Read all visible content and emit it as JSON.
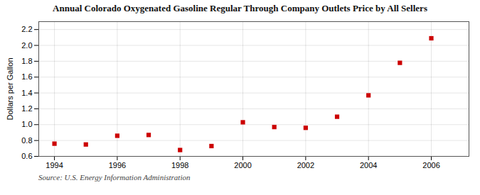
{
  "chart_data": {
    "type": "scatter",
    "title": "Annual Colorado Oxygenated Gasoline Regular Through Company Outlets Price by All Sellers",
    "ylabel": "Dollars per Gallon",
    "source": "Source: U.S. Energy Information Administration",
    "x": [
      1994,
      1995,
      1996,
      1997,
      1998,
      1999,
      2000,
      2001,
      2002,
      2003,
      2004,
      2005,
      2006
    ],
    "values": [
      0.76,
      0.75,
      0.86,
      0.87,
      0.68,
      0.73,
      1.03,
      0.97,
      0.96,
      1.1,
      1.37,
      1.78,
      2.09
    ],
    "color": "#cc0000",
    "marker": "square",
    "xlim": [
      1993.5,
      2007.2
    ],
    "xticks": [
      1994,
      1996,
      1998,
      2000,
      2002,
      2004,
      2006
    ],
    "ylim": [
      0.6,
      2.3
    ],
    "yticks": [
      0.6,
      0.8,
      {
        "value": 1.0,
        "label": "1.0"
      },
      1.2,
      1.4,
      1.6,
      1.8,
      {
        "value": 2.0,
        "label": "2.0"
      },
      2.2
    ],
    "grid": true
  }
}
